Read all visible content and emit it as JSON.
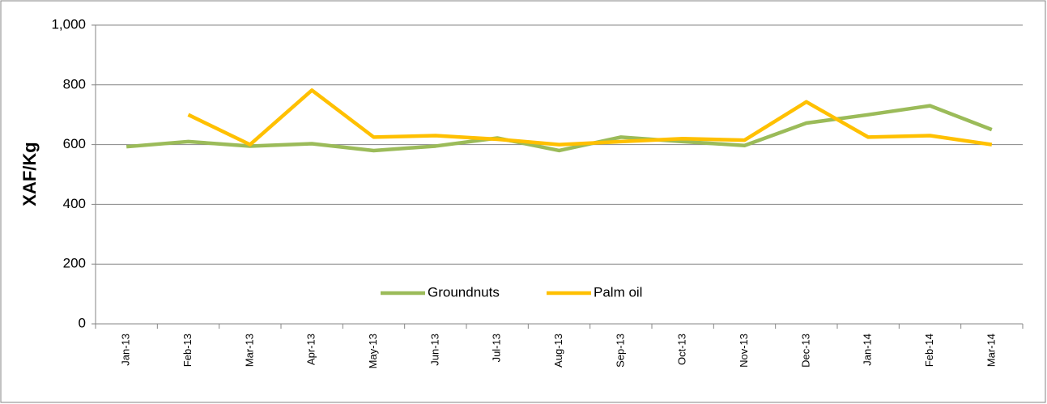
{
  "chart_data": {
    "type": "line",
    "y_label": "XAF/Kg",
    "categories": [
      "Jan-13",
      "Feb-13",
      "Mar-13",
      "Apr-13",
      "May-13",
      "Jun-13",
      "Jul-13",
      "Aug-13",
      "Sep-13",
      "Oct-13",
      "Nov-13",
      "Dec-13",
      "Jan-14",
      "Feb-14",
      "Mar-14"
    ],
    "series": [
      {
        "name": "Groundnuts",
        "color": "#9bbb59",
        "values": [
          593,
          610,
          595,
          603,
          580,
          595,
          622,
          580,
          625,
          610,
          597,
          672,
          700,
          730,
          650
        ]
      },
      {
        "name": "Palm oil",
        "color": "#ffc000",
        "values": [
          null,
          700,
          600,
          782,
          625,
          630,
          618,
          600,
          610,
          620,
          615,
          743,
          625,
          630,
          600
        ]
      }
    ],
    "ylim": [
      0,
      1000
    ],
    "yticks": [
      0,
      200,
      400,
      600,
      800,
      {
        "value": 1000,
        "label": "1,000"
      }
    ],
    "grid": true,
    "legend": "bottom"
  }
}
